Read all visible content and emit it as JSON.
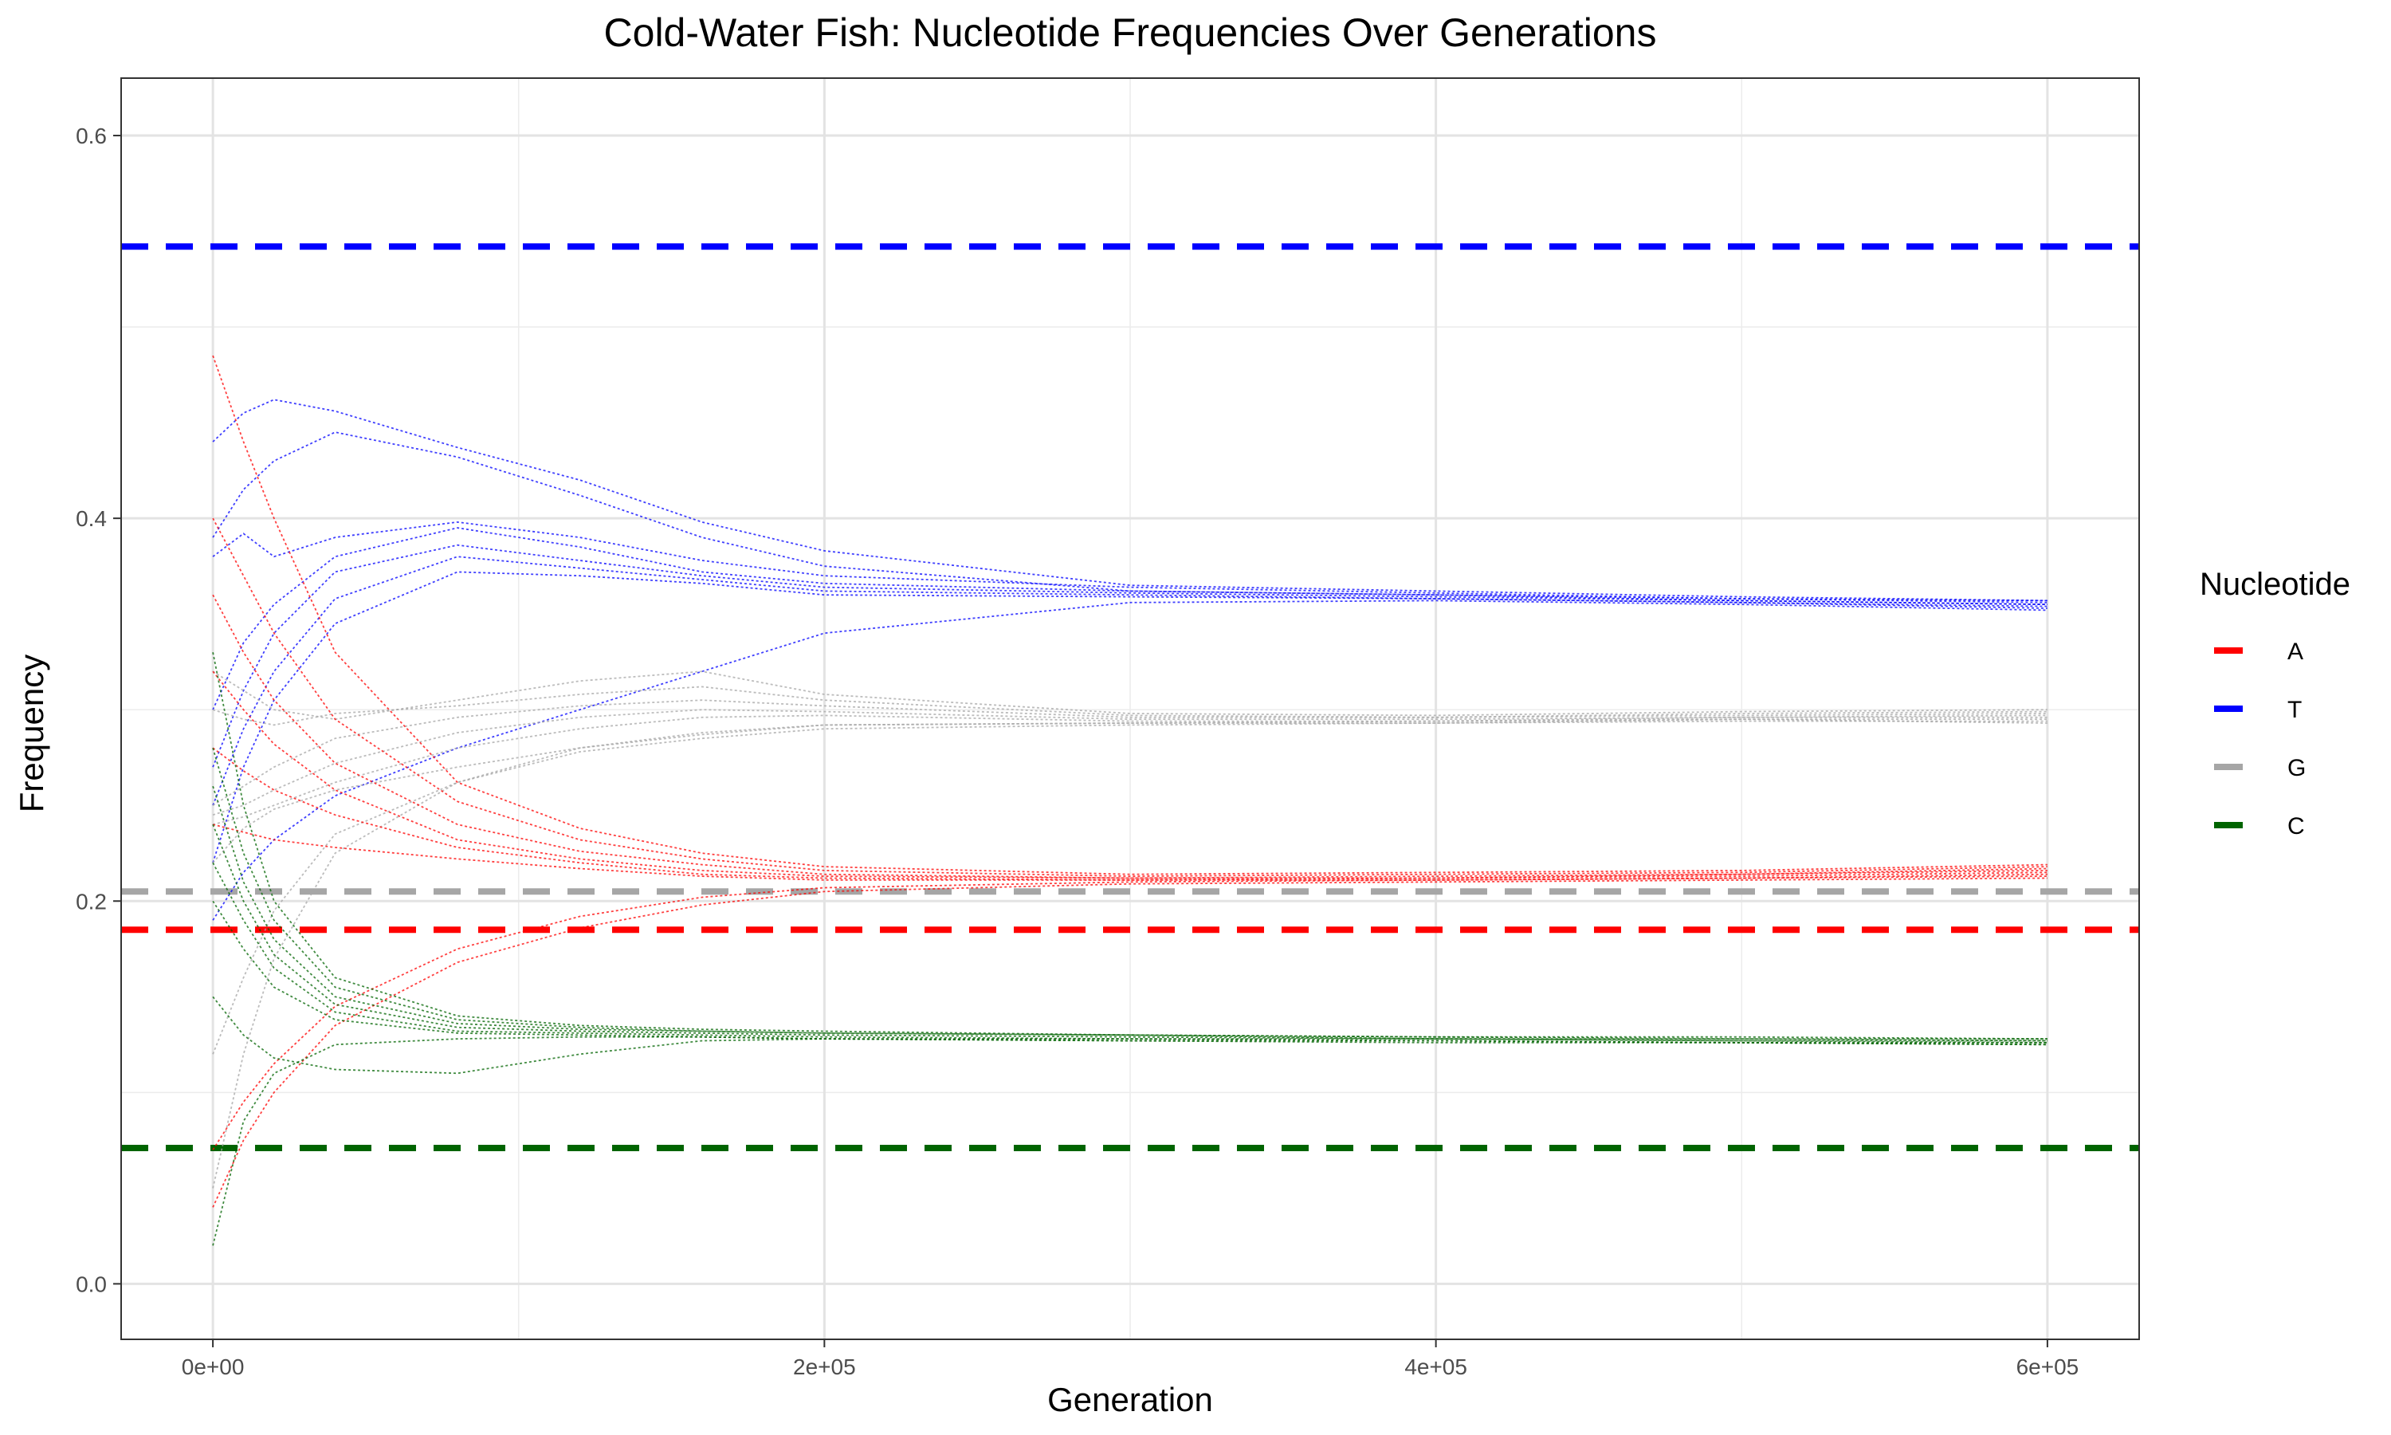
{
  "chart_data": {
    "type": "line",
    "title": "Cold-Water Fish: Nucleotide Frequencies Over Generations",
    "xlabel": "Generation",
    "ylabel": "Frequency",
    "xlim": [
      -30000,
      630000
    ],
    "ylim": [
      -0.029,
      0.63
    ],
    "x_ticks": [
      0,
      200000,
      400000,
      600000
    ],
    "x_tick_labels": [
      "0e+00",
      "2e+05",
      "4e+05",
      "6e+05"
    ],
    "y_ticks": [
      0.0,
      0.2,
      0.4,
      0.6
    ],
    "y_tick_labels": [
      "0.0",
      "0.2",
      "0.4",
      "0.6"
    ],
    "grid": true,
    "legend": {
      "title": "Nucleotide",
      "placement": "right",
      "entries": [
        "A",
        "T",
        "G",
        "C"
      ]
    },
    "colors": {
      "A": "#ff0000",
      "T": "#0000ff",
      "G": "#a6a6a6",
      "C": "#006400"
    },
    "reference_lines": [
      {
        "nucleotide": "T",
        "y": 0.542
      },
      {
        "nucleotide": "G",
        "y": 0.205
      },
      {
        "nucleotide": "A",
        "y": 0.185
      },
      {
        "nucleotide": "C",
        "y": 0.071
      }
    ],
    "series": [
      {
        "nucleotide": "T",
        "x": [
          0,
          10000,
          20000,
          40000,
          80000,
          120000,
          160000,
          200000,
          300000,
          400000,
          500000,
          600000
        ],
        "values": [
          0.44,
          0.455,
          0.462,
          0.456,
          0.437,
          0.42,
          0.398,
          0.383,
          0.365,
          0.362,
          0.359,
          0.357
        ]
      },
      {
        "nucleotide": "T",
        "x": [
          0,
          10000,
          20000,
          40000,
          80000,
          120000,
          160000,
          200000,
          300000,
          400000,
          500000,
          600000
        ],
        "values": [
          0.39,
          0.415,
          0.43,
          0.445,
          0.432,
          0.412,
          0.39,
          0.375,
          0.362,
          0.36,
          0.357,
          0.355
        ]
      },
      {
        "nucleotide": "T",
        "x": [
          0,
          10000,
          20000,
          40000,
          80000,
          120000,
          160000,
          200000,
          300000,
          400000,
          500000,
          600000
        ],
        "values": [
          0.38,
          0.392,
          0.38,
          0.39,
          0.398,
          0.39,
          0.378,
          0.37,
          0.364,
          0.361,
          0.358,
          0.356
        ]
      },
      {
        "nucleotide": "T",
        "x": [
          0,
          10000,
          20000,
          40000,
          80000,
          120000,
          160000,
          200000,
          300000,
          400000,
          500000,
          600000
        ],
        "values": [
          0.3,
          0.335,
          0.355,
          0.38,
          0.395,
          0.385,
          0.372,
          0.366,
          0.362,
          0.36,
          0.358,
          0.357
        ]
      },
      {
        "nucleotide": "T",
        "x": [
          0,
          10000,
          20000,
          40000,
          80000,
          120000,
          160000,
          200000,
          300000,
          400000,
          500000,
          600000
        ],
        "values": [
          0.27,
          0.31,
          0.34,
          0.372,
          0.386,
          0.378,
          0.37,
          0.364,
          0.361,
          0.359,
          0.357,
          0.355
        ]
      },
      {
        "nucleotide": "T",
        "x": [
          0,
          10000,
          20000,
          40000,
          80000,
          120000,
          160000,
          200000,
          300000,
          400000,
          500000,
          600000
        ],
        "values": [
          0.25,
          0.29,
          0.32,
          0.358,
          0.38,
          0.374,
          0.368,
          0.362,
          0.36,
          0.358,
          0.356,
          0.354
        ]
      },
      {
        "nucleotide": "T",
        "x": [
          0,
          10000,
          20000,
          40000,
          80000,
          120000,
          160000,
          200000,
          300000,
          400000,
          500000,
          600000
        ],
        "values": [
          0.22,
          0.27,
          0.305,
          0.345,
          0.372,
          0.37,
          0.366,
          0.36,
          0.359,
          0.358,
          0.356,
          0.353
        ]
      },
      {
        "nucleotide": "T",
        "x": [
          0,
          10000,
          20000,
          40000,
          80000,
          120000,
          160000,
          200000,
          300000,
          400000,
          500000,
          600000
        ],
        "values": [
          0.19,
          0.215,
          0.232,
          0.255,
          0.28,
          0.3,
          0.32,
          0.34,
          0.356,
          0.357,
          0.355,
          0.352
        ]
      },
      {
        "nucleotide": "G",
        "x": [
          0,
          10000,
          20000,
          40000,
          80000,
          120000,
          160000,
          200000,
          300000,
          400000,
          500000,
          600000
        ],
        "values": [
          0.32,
          0.31,
          0.3,
          0.295,
          0.305,
          0.315,
          0.32,
          0.308,
          0.298,
          0.297,
          0.299,
          0.3
        ]
      },
      {
        "nucleotide": "G",
        "x": [
          0,
          10000,
          20000,
          40000,
          80000,
          120000,
          160000,
          200000,
          300000,
          400000,
          500000,
          600000
        ],
        "values": [
          0.3,
          0.295,
          0.292,
          0.298,
          0.302,
          0.308,
          0.312,
          0.305,
          0.297,
          0.296,
          0.298,
          0.299
        ]
      },
      {
        "nucleotide": "G",
        "x": [
          0,
          10000,
          20000,
          40000,
          80000,
          120000,
          160000,
          200000,
          300000,
          400000,
          500000,
          600000
        ],
        "values": [
          0.25,
          0.26,
          0.27,
          0.285,
          0.296,
          0.302,
          0.305,
          0.302,
          0.296,
          0.296,
          0.297,
          0.298
        ]
      },
      {
        "nucleotide": "G",
        "x": [
          0,
          10000,
          20000,
          40000,
          80000,
          120000,
          160000,
          200000,
          300000,
          400000,
          500000,
          600000
        ],
        "values": [
          0.245,
          0.25,
          0.258,
          0.272,
          0.288,
          0.296,
          0.3,
          0.299,
          0.295,
          0.295,
          0.296,
          0.297
        ]
      },
      {
        "nucleotide": "G",
        "x": [
          0,
          10000,
          20000,
          40000,
          80000,
          120000,
          160000,
          200000,
          300000,
          400000,
          500000,
          600000
        ],
        "values": [
          0.24,
          0.244,
          0.25,
          0.262,
          0.28,
          0.29,
          0.296,
          0.297,
          0.294,
          0.294,
          0.296,
          0.296
        ]
      },
      {
        "nucleotide": "G",
        "x": [
          0,
          10000,
          20000,
          40000,
          80000,
          120000,
          160000,
          200000,
          300000,
          400000,
          500000,
          600000
        ],
        "values": [
          0.22,
          0.238,
          0.248,
          0.258,
          0.27,
          0.28,
          0.288,
          0.292,
          0.293,
          0.293,
          0.295,
          0.295
        ]
      },
      {
        "nucleotide": "G",
        "x": [
          0,
          10000,
          20000,
          40000,
          80000,
          120000,
          160000,
          200000,
          300000,
          400000,
          500000,
          600000
        ],
        "values": [
          0.12,
          0.16,
          0.195,
          0.235,
          0.262,
          0.278,
          0.285,
          0.29,
          0.292,
          0.293,
          0.294,
          0.294
        ]
      },
      {
        "nucleotide": "G",
        "x": [
          0,
          10000,
          20000,
          40000,
          80000,
          120000,
          160000,
          200000,
          300000,
          400000,
          500000,
          600000
        ],
        "values": [
          0.05,
          0.12,
          0.17,
          0.225,
          0.262,
          0.28,
          0.287,
          0.292,
          0.293,
          0.294,
          0.295,
          0.293
        ]
      },
      {
        "nucleotide": "A",
        "x": [
          0,
          10000,
          20000,
          40000,
          80000,
          120000,
          160000,
          200000,
          300000,
          400000,
          500000,
          600000
        ],
        "values": [
          0.485,
          0.44,
          0.4,
          0.33,
          0.262,
          0.238,
          0.225,
          0.218,
          0.214,
          0.215,
          0.216,
          0.219
        ]
      },
      {
        "nucleotide": "A",
        "x": [
          0,
          10000,
          20000,
          40000,
          80000,
          120000,
          160000,
          200000,
          300000,
          400000,
          500000,
          600000
        ],
        "values": [
          0.4,
          0.37,
          0.34,
          0.295,
          0.252,
          0.232,
          0.222,
          0.216,
          0.213,
          0.214,
          0.215,
          0.218
        ]
      },
      {
        "nucleotide": "A",
        "x": [
          0,
          10000,
          20000,
          40000,
          80000,
          120000,
          160000,
          200000,
          300000,
          400000,
          500000,
          600000
        ],
        "values": [
          0.36,
          0.33,
          0.305,
          0.272,
          0.24,
          0.226,
          0.219,
          0.214,
          0.212,
          0.213,
          0.214,
          0.217
        ]
      },
      {
        "nucleotide": "A",
        "x": [
          0,
          10000,
          20000,
          40000,
          80000,
          120000,
          160000,
          200000,
          300000,
          400000,
          500000,
          600000
        ],
        "values": [
          0.32,
          0.3,
          0.282,
          0.258,
          0.232,
          0.222,
          0.216,
          0.213,
          0.212,
          0.212,
          0.214,
          0.216
        ]
      },
      {
        "nucleotide": "A",
        "x": [
          0,
          10000,
          20000,
          40000,
          80000,
          120000,
          160000,
          200000,
          300000,
          400000,
          500000,
          600000
        ],
        "values": [
          0.28,
          0.268,
          0.258,
          0.245,
          0.228,
          0.22,
          0.214,
          0.212,
          0.211,
          0.212,
          0.213,
          0.215
        ]
      },
      {
        "nucleotide": "A",
        "x": [
          0,
          10000,
          20000,
          40000,
          80000,
          120000,
          160000,
          200000,
          300000,
          400000,
          500000,
          600000
        ],
        "values": [
          0.24,
          0.236,
          0.232,
          0.228,
          0.222,
          0.217,
          0.213,
          0.211,
          0.211,
          0.211,
          0.212,
          0.214
        ]
      },
      {
        "nucleotide": "A",
        "x": [
          0,
          10000,
          20000,
          40000,
          80000,
          120000,
          160000,
          200000,
          300000,
          400000,
          500000,
          600000
        ],
        "values": [
          0.07,
          0.095,
          0.115,
          0.145,
          0.175,
          0.192,
          0.202,
          0.207,
          0.21,
          0.211,
          0.212,
          0.213
        ]
      },
      {
        "nucleotide": "A",
        "x": [
          0,
          10000,
          20000,
          40000,
          80000,
          120000,
          160000,
          200000,
          300000,
          400000,
          500000,
          600000
        ],
        "values": [
          0.04,
          0.075,
          0.1,
          0.135,
          0.168,
          0.186,
          0.198,
          0.205,
          0.209,
          0.21,
          0.211,
          0.212
        ]
      },
      {
        "nucleotide": "C",
        "x": [
          0,
          10000,
          20000,
          40000,
          80000,
          120000,
          160000,
          200000,
          300000,
          400000,
          500000,
          600000
        ],
        "values": [
          0.33,
          0.25,
          0.2,
          0.16,
          0.14,
          0.135,
          0.133,
          0.132,
          0.13,
          0.129,
          0.129,
          0.128
        ]
      },
      {
        "nucleotide": "C",
        "x": [
          0,
          10000,
          20000,
          40000,
          80000,
          120000,
          160000,
          200000,
          300000,
          400000,
          500000,
          600000
        ],
        "values": [
          0.28,
          0.225,
          0.19,
          0.155,
          0.138,
          0.134,
          0.132,
          0.131,
          0.13,
          0.129,
          0.128,
          0.128
        ]
      },
      {
        "nucleotide": "C",
        "x": [
          0,
          10000,
          20000,
          40000,
          80000,
          120000,
          160000,
          200000,
          300000,
          400000,
          500000,
          600000
        ],
        "values": [
          0.26,
          0.21,
          0.18,
          0.15,
          0.136,
          0.133,
          0.132,
          0.131,
          0.13,
          0.128,
          0.128,
          0.127
        ]
      },
      {
        "nucleotide": "C",
        "x": [
          0,
          10000,
          20000,
          40000,
          80000,
          120000,
          160000,
          200000,
          300000,
          400000,
          500000,
          600000
        ],
        "values": [
          0.24,
          0.2,
          0.172,
          0.146,
          0.134,
          0.132,
          0.131,
          0.13,
          0.129,
          0.128,
          0.127,
          0.127
        ]
      },
      {
        "nucleotide": "C",
        "x": [
          0,
          10000,
          20000,
          40000,
          80000,
          120000,
          160000,
          200000,
          300000,
          400000,
          500000,
          600000
        ],
        "values": [
          0.22,
          0.19,
          0.165,
          0.142,
          0.132,
          0.131,
          0.13,
          0.129,
          0.128,
          0.128,
          0.127,
          0.126
        ]
      },
      {
        "nucleotide": "C",
        "x": [
          0,
          10000,
          20000,
          40000,
          80000,
          120000,
          160000,
          200000,
          300000,
          400000,
          500000,
          600000
        ],
        "values": [
          0.2,
          0.175,
          0.155,
          0.138,
          0.131,
          0.13,
          0.129,
          0.128,
          0.128,
          0.127,
          0.126,
          0.126
        ]
      },
      {
        "nucleotide": "C",
        "x": [
          0,
          10000,
          20000,
          40000,
          80000,
          120000,
          160000,
          200000,
          300000,
          400000,
          500000,
          600000
        ],
        "values": [
          0.15,
          0.13,
          0.118,
          0.112,
          0.11,
          0.12,
          0.127,
          0.128,
          0.127,
          0.127,
          0.126,
          0.125
        ]
      },
      {
        "nucleotide": "C",
        "x": [
          0,
          10000,
          20000,
          40000,
          80000,
          120000,
          160000,
          200000,
          300000,
          400000,
          500000,
          600000
        ],
        "values": [
          0.02,
          0.085,
          0.11,
          0.125,
          0.128,
          0.129,
          0.129,
          0.128,
          0.127,
          0.126,
          0.126,
          0.125
        ]
      }
    ]
  }
}
